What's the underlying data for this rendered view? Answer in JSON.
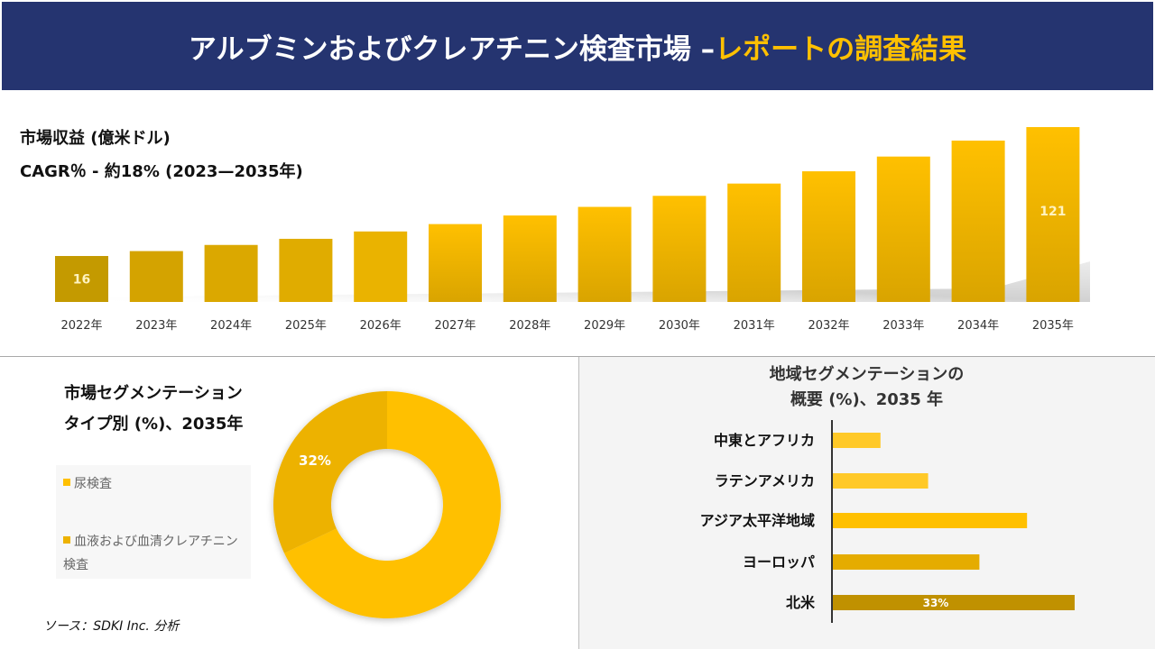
{
  "header": {
    "title_main": "アルブミンおよびクレアチニン検査市場 –",
    "title_accent": "レポートの調査結果"
  },
  "revenue": {
    "title": "市場収益 (億米ドル)",
    "cagr": "CAGR％ - 約18% (2023—2035年)"
  },
  "segmentation": {
    "title_line1": "市場セグメンテーション",
    "title_line2": "タイプ別 (%)、2035年"
  },
  "region": {
    "title_line1": "地域セグメンテーションの",
    "title_line2": "概要 (%)、2035 年"
  },
  "source": "ソース：SDKI Inc. 分析",
  "chart_data": [
    {
      "type": "bar",
      "title": "市場収益 (億米ドル)",
      "categories": [
        "2022年",
        "2023年",
        "2024年",
        "2025年",
        "2026年",
        "2027年",
        "2028年",
        "2029年",
        "2030年",
        "2031年",
        "2032年",
        "2033年",
        "2034年",
        "2035年"
      ],
      "values": [
        16,
        20,
        25,
        30,
        36,
        42,
        49,
        56,
        65,
        75,
        85,
        97,
        110,
        121
      ],
      "data_labels": {
        "0": "16",
        "13": "121"
      },
      "xlabel": "",
      "ylabel": "",
      "grid": false,
      "colors": {
        "start": "#C49A00",
        "end": "#FFC000"
      }
    },
    {
      "type": "pie",
      "title": "市場セグメンテーション タイプ別 (%)、2035年",
      "labels": [
        "尿検査",
        "血液および血清クレアチニン検査"
      ],
      "values": [
        68,
        32
      ],
      "data_labels": [
        "",
        "32%"
      ],
      "colors": [
        "#FFC000",
        "#EDB200"
      ],
      "donut": true,
      "legend": "left"
    },
    {
      "type": "bar",
      "orientation": "horizontal",
      "title": "地域セグメンテーションの概要 (%)、2035 年",
      "categories": [
        "中東とアフリカ",
        "ラテンアメリカ",
        "アジア太平洋地域",
        "ヨーロッパ",
        "北米"
      ],
      "values": [
        6.5,
        13,
        26.5,
        20,
        33
      ],
      "data_labels": [
        "",
        "",
        "",
        "",
        "33%"
      ],
      "colors": [
        "#FFC928",
        "#FFC928",
        "#FFC000",
        "#E5AC00",
        "#C09100"
      ]
    }
  ]
}
